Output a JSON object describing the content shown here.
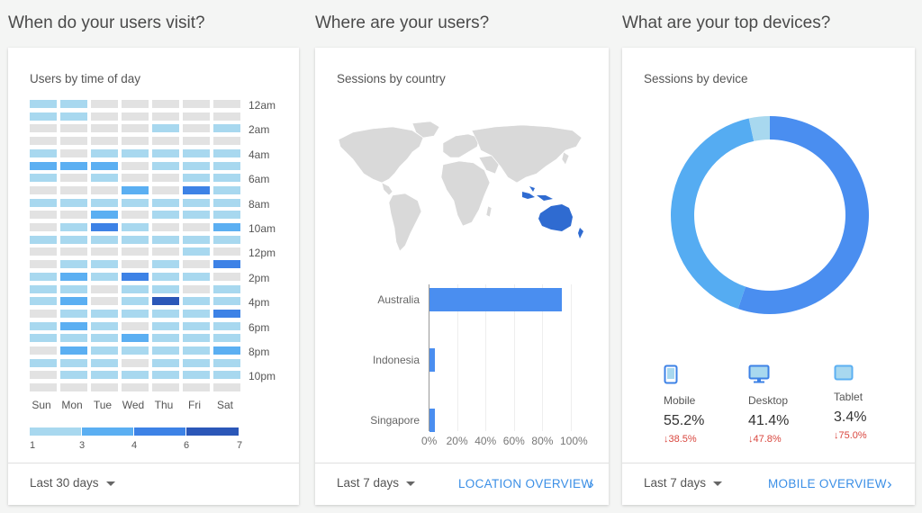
{
  "sections": {
    "visit": "When do your users visit?",
    "where": "Where are your users?",
    "devices": "What are your top devices?"
  },
  "time_card": {
    "title": "Users by time of day",
    "hours": [
      "12am",
      "2am",
      "4am",
      "6am",
      "8am",
      "10am",
      "12pm",
      "2pm",
      "4pm",
      "6pm",
      "8pm",
      "10pm"
    ],
    "days": [
      "Sun",
      "Mon",
      "Tue",
      "Wed",
      "Thu",
      "Fri",
      "Sat"
    ],
    "legend": [
      "1",
      "3",
      "4",
      "6",
      "7"
    ],
    "colors": [
      "#e2e2e2",
      "#a8d8ef",
      "#5baff2",
      "#3d82e6",
      "#2b57b8"
    ],
    "grid": [
      [
        1,
        1,
        0,
        0,
        0,
        0,
        0
      ],
      [
        1,
        1,
        0,
        0,
        0,
        0,
        0
      ],
      [
        0,
        0,
        0,
        0,
        1,
        0,
        1
      ],
      [
        0,
        0,
        0,
        0,
        0,
        0,
        0
      ],
      [
        1,
        0,
        1,
        1,
        1,
        1,
        1
      ],
      [
        2,
        2,
        2,
        0,
        1,
        1,
        1
      ],
      [
        1,
        0,
        1,
        0,
        0,
        1,
        1
      ],
      [
        0,
        0,
        0,
        2,
        0,
        3,
        1
      ],
      [
        1,
        1,
        1,
        1,
        1,
        1,
        1
      ],
      [
        0,
        0,
        2,
        0,
        1,
        1,
        1
      ],
      [
        0,
        1,
        3,
        1,
        0,
        0,
        2
      ],
      [
        1,
        1,
        1,
        1,
        1,
        1,
        1
      ],
      [
        0,
        0,
        0,
        0,
        0,
        1,
        0
      ],
      [
        0,
        1,
        1,
        0,
        1,
        0,
        3
      ],
      [
        1,
        2,
        1,
        3,
        1,
        1,
        0
      ],
      [
        1,
        1,
        0,
        1,
        1,
        0,
        1
      ],
      [
        1,
        2,
        0,
        1,
        4,
        1,
        1
      ],
      [
        0,
        1,
        1,
        1,
        1,
        1,
        3
      ],
      [
        1,
        2,
        1,
        0,
        1,
        1,
        1
      ],
      [
        1,
        1,
        1,
        2,
        1,
        1,
        1
      ],
      [
        0,
        2,
        1,
        1,
        1,
        1,
        2
      ],
      [
        1,
        1,
        1,
        0,
        1,
        1,
        1
      ],
      [
        0,
        1,
        1,
        1,
        1,
        1,
        1
      ],
      [
        0,
        0,
        0,
        0,
        0,
        0,
        0
      ]
    ],
    "range": "Last 30 days"
  },
  "country_card": {
    "title": "Sessions by country",
    "range": "Last 7 days",
    "link": "LOCATION OVERVIEW",
    "axis": [
      "0%",
      "20%",
      "40%",
      "60%",
      "80%",
      "100%"
    ],
    "chart_data": {
      "type": "bar",
      "categories": [
        "Australia",
        "Indonesia",
        "Singapore"
      ],
      "values": [
        93,
        4,
        4
      ],
      "xlim": [
        0,
        100
      ]
    }
  },
  "device_card": {
    "title": "Sessions by device",
    "range": "Last 7 days",
    "link": "MOBILE OVERVIEW",
    "chart_data": {
      "type": "pie",
      "categories": [
        "Mobile",
        "Desktop",
        "Tablet"
      ],
      "values": [
        55.2,
        41.4,
        3.4
      ],
      "colors": [
        "#4a8ef0",
        "#55acf2",
        "#a8d8ef"
      ]
    },
    "items": [
      {
        "label": "Mobile",
        "pct": "55.2%",
        "delta": "38.5%"
      },
      {
        "label": "Desktop",
        "pct": "41.4%",
        "delta": "47.8%"
      },
      {
        "label": "Tablet",
        "pct": "3.4%",
        "delta": "75.0%"
      }
    ],
    "icons": [
      "mobile-phone-icon",
      "desktop-monitor-icon",
      "tablet-icon"
    ]
  }
}
